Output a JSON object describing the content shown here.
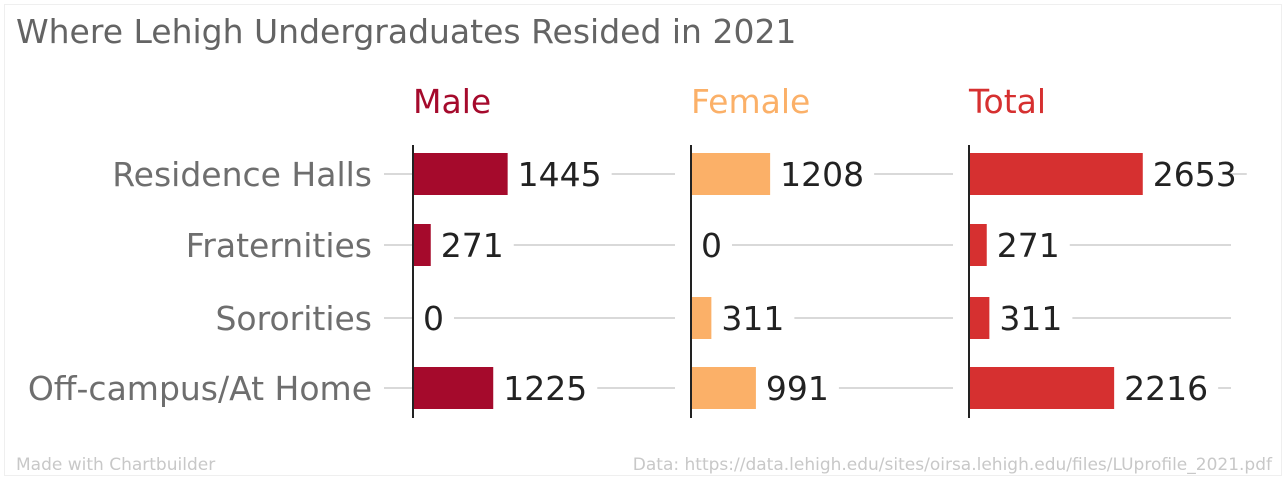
{
  "title": "Where Lehigh Undergraduates Resided in 2021",
  "footer": {
    "left": "Made with Chartbuilder",
    "right": "Data: https://data.lehigh.edu/sites/oirsa.lehigh.edu/files/LUprofile_2021.pdf"
  },
  "chart_data": {
    "type": "bar",
    "orientation": "horizontal",
    "layout": "small-multiples",
    "title": "Where Lehigh Undergraduates Resided in 2021",
    "categories": [
      "Residence Halls",
      "Fraternities",
      "Sororities",
      "Off-campus/At Home"
    ],
    "series": [
      {
        "name": "Male",
        "color": "#a50a2c",
        "values": [
          1445,
          271,
          0,
          1225
        ]
      },
      {
        "name": "Female",
        "color": "#fbb068",
        "values": [
          1208,
          0,
          311,
          991
        ]
      },
      {
        "name": "Total",
        "color": "#d63030",
        "values": [
          2653,
          271,
          311,
          2216
        ]
      }
    ],
    "xlim": [
      0,
      4000
    ],
    "data_labels": true,
    "grid": "horizontal row guides",
    "xlabel": "",
    "ylabel": ""
  }
}
